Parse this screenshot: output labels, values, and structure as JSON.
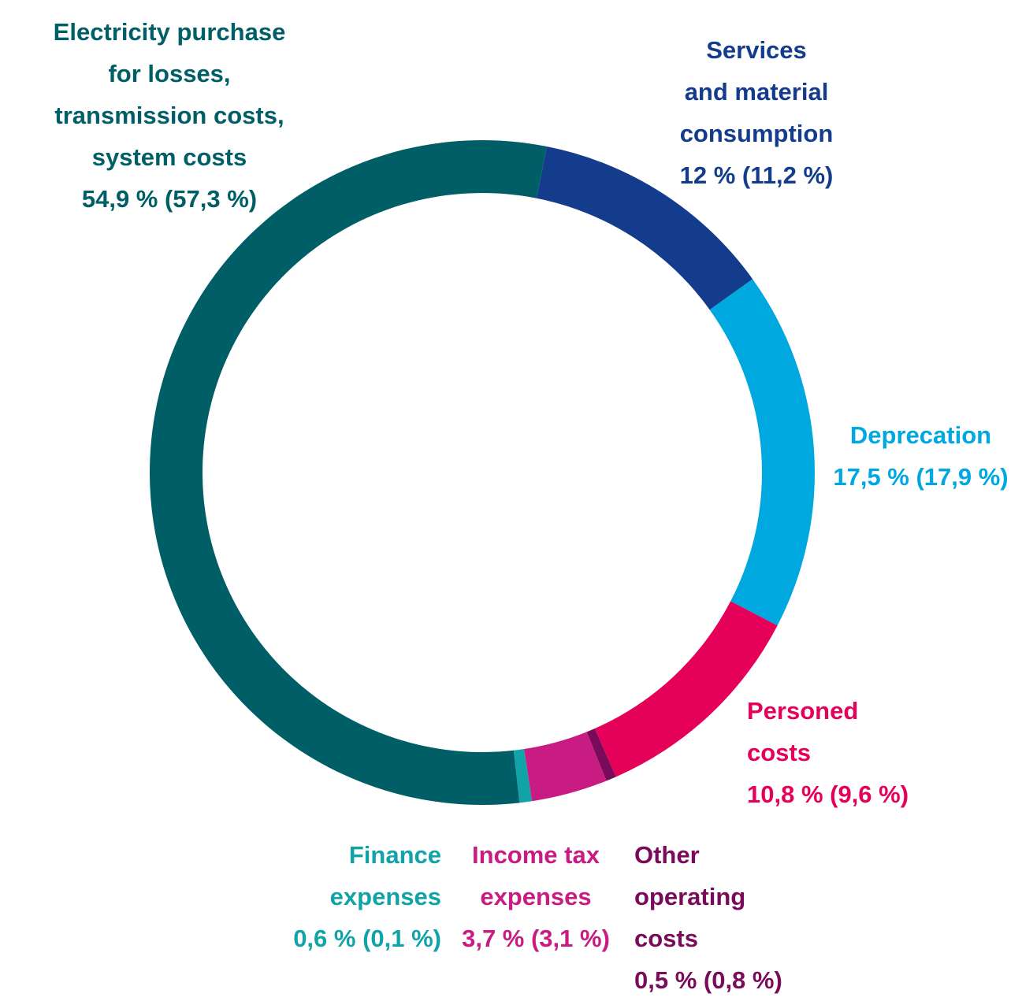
{
  "chart_data": {
    "type": "donut",
    "categories": [
      "Services\nand material\nconsumption",
      "Deprecation",
      "Personed\ncosts",
      "Other\noperating\ncosts",
      "Income tax\nexpenses",
      "Finance\nexpenses",
      "Electricity purchase\nfor losses,\ntransmission costs,\nsystem costs"
    ],
    "values": [
      12,
      17.5,
      10.8,
      0.5,
      3.7,
      0.6,
      54.9
    ],
    "value_labels": [
      "12 % (11,2 %)",
      "17,5 % (17,9 %)",
      "10,8 % (9,6 %)",
      "0,5 % (0,8 %)",
      "3,7 % (3,1 %)",
      "0,6 % (0,1 %)",
      "54,9 % (57,3 %)"
    ],
    "colors": [
      "#143c8c",
      "#00a8e0",
      "#e5005a",
      "#7a0b5a",
      "#c81c82",
      "#11a3a8",
      "#005f66"
    ]
  }
}
